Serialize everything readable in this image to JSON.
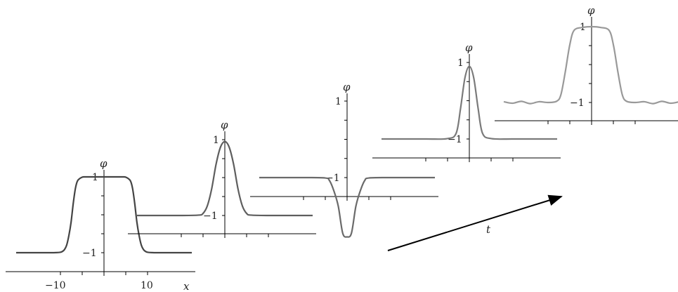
{
  "chart_data": {
    "type": "line",
    "description_free": true,
    "snapshots": [
      {
        "name": "",
        "x": [
          -20,
          -15,
          -12,
          -11,
          -10,
          -9.5,
          -9,
          -8.5,
          -8,
          -7.5,
          -7,
          -6.5,
          -6,
          -5,
          -4,
          0,
          4,
          5,
          6,
          6.5,
          7,
          7.5,
          8,
          8.5,
          9,
          9.5,
          10,
          11,
          12,
          15,
          20
        ],
        "y": [
          -1,
          -1,
          -1,
          -0.998,
          -0.99,
          -0.97,
          -0.92,
          -0.8,
          -0.55,
          -0.2,
          0.3,
          0.7,
          0.9,
          0.99,
          1,
          1,
          1,
          0.99,
          0.9,
          0.7,
          0.3,
          -0.2,
          -0.55,
          -0.8,
          -0.92,
          -0.97,
          -0.99,
          -0.998,
          -1,
          -1,
          -1
        ],
        "color": "#444444",
        "tick_labels": {
          "x": [
            "−10",
            "10"
          ],
          "y": [
            "1",
            "−1"
          ]
        },
        "xlabel": "x",
        "ylabel": "φ"
      },
      {
        "name": "",
        "x": [
          -20,
          -10,
          -6,
          -5,
          -4,
          -3,
          -2,
          -1,
          0,
          1,
          2,
          3,
          4,
          5,
          6,
          10,
          20
        ],
        "y": [
          -1,
          -1,
          -0.99,
          -0.95,
          -0.75,
          -0.3,
          0.35,
          0.8,
          0.95,
          0.8,
          0.35,
          -0.3,
          -0.75,
          -0.95,
          -0.99,
          -1,
          -1
        ],
        "color": "#5e5e5e",
        "tick_labels": {
          "y": [
            "1",
            "−1"
          ]
        },
        "ylabel": "φ"
      },
      {
        "name": "",
        "x": [
          -20,
          -10,
          -5,
          -4,
          -3,
          -2,
          -1,
          0,
          1,
          2,
          3,
          4,
          5,
          10,
          20
        ],
        "y": [
          -1,
          -1,
          -1.01,
          -1.08,
          -1.35,
          -1.75,
          -2.45,
          -2.55,
          -2.45,
          -1.75,
          -1.35,
          -1.08,
          -1.01,
          -1,
          -1
        ],
        "color": "#6a6a6a",
        "tick_labels": {
          "y": [
            "1",
            "−1"
          ]
        },
        "ylabel": "φ"
      },
      {
        "name": "",
        "x": [
          -20,
          -10,
          -5,
          -3,
          -2,
          -1,
          0,
          1,
          2,
          3,
          5,
          10,
          20
        ],
        "y": [
          -1,
          -1,
          -0.99,
          -0.85,
          -0.2,
          0.6,
          0.9,
          0.6,
          -0.2,
          -0.85,
          -0.99,
          -1,
          -1
        ],
        "color": "#7a7a7a",
        "tick_labels": {
          "y": [
            "1",
            "−1"
          ]
        },
        "ylabel": "φ"
      },
      {
        "name": "",
        "x": [
          -20,
          -18,
          -16,
          -14,
          -12,
          -10,
          -8,
          -7,
          -6,
          -5,
          -4,
          -2,
          0,
          2,
          4,
          5,
          6,
          7,
          8,
          10,
          12,
          14,
          16,
          18,
          20
        ],
        "y": [
          -0.98,
          -1.02,
          -0.97,
          -1.03,
          -0.98,
          -1.0,
          -0.97,
          -0.8,
          -0.2,
          0.5,
          0.9,
          0.98,
          1,
          0.98,
          0.9,
          0.5,
          -0.2,
          -0.8,
          -0.97,
          -1.0,
          -0.98,
          -1.03,
          -0.97,
          -1.02,
          -0.98
        ],
        "color": "#999999",
        "tick_labels": {
          "y": [
            "1",
            "−1"
          ]
        },
        "ylabel": "φ"
      }
    ],
    "time_arrow_label": "t"
  }
}
